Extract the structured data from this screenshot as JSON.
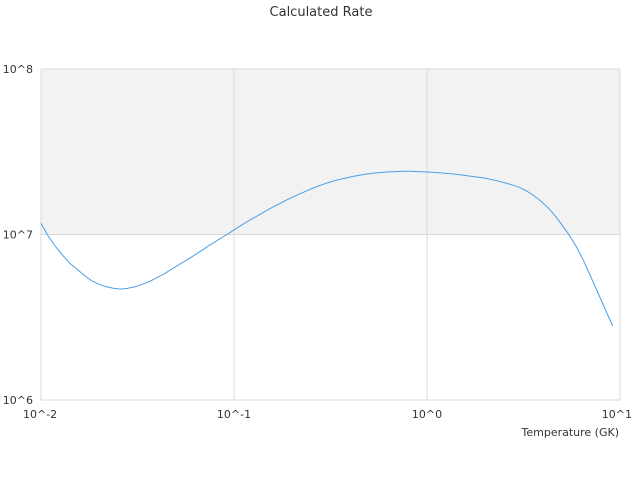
{
  "chart_data": {
    "type": "line",
    "title": "Calculated Rate",
    "xlabel": "Temperature (GK)",
    "ylabel": "",
    "x_scale": "log",
    "y_scale": "log",
    "xlim": [
      0.01,
      10
    ],
    "ylim": [
      1000000,
      100000000
    ],
    "x_ticks": [
      {
        "value": 0.01,
        "label": "10^-2"
      },
      {
        "value": 0.1,
        "label": "10^-1"
      },
      {
        "value": 1,
        "label": "10^0"
      },
      {
        "value": 10,
        "label": "10^1"
      }
    ],
    "y_ticks": [
      {
        "value": 1000000,
        "label": "10^6"
      },
      {
        "value": 10000000,
        "label": "10^7"
      },
      {
        "value": 100000000,
        "label": "10^8"
      }
    ],
    "grid": true,
    "band_colors": [
      "#f2f2f2",
      "#ffffff"
    ],
    "series": [
      {
        "name": "",
        "color": "#4a9fe8",
        "x": [
          0.01,
          0.0109,
          0.0119,
          0.013,
          0.0141,
          0.0154,
          0.0168,
          0.0183,
          0.02,
          0.0218,
          0.0237,
          0.0259,
          0.0282,
          0.0307,
          0.0335,
          0.0365,
          0.0398,
          0.0434,
          0.0473,
          0.0516,
          0.0562,
          0.0613,
          0.0668,
          0.0729,
          0.0794,
          0.0866,
          0.0944,
          0.103,
          0.112,
          0.122,
          0.133,
          0.145,
          0.158,
          0.173,
          0.188,
          0.205,
          0.224,
          0.244,
          0.266,
          0.29,
          0.316,
          0.345,
          0.376,
          0.41,
          0.447,
          0.487,
          0.531,
          0.579,
          0.631,
          0.688,
          0.75,
          0.818,
          0.891,
          0.972,
          1.06,
          1.16,
          1.26,
          1.37,
          1.5,
          1.63,
          1.78,
          1.94,
          2.11,
          2.31,
          2.51,
          2.74,
          2.99,
          3.26,
          3.55,
          3.87,
          4.22,
          4.6,
          5.01,
          5.46,
          5.96,
          6.49,
          7.08,
          7.72,
          8.41,
          9.17
        ],
        "y": [
          11700000,
          9800000,
          8450000,
          7450000,
          6700000,
          6150000,
          5650000,
          5250000,
          5000000,
          4830000,
          4730000,
          4680000,
          4730000,
          4830000,
          5000000,
          5200000,
          5480000,
          5780000,
          6150000,
          6550000,
          6950000,
          7400000,
          7900000,
          8450000,
          9000000,
          9600000,
          10200000,
          10900000,
          11600000,
          12300000,
          13000000,
          13800000,
          14600000,
          15400000,
          16200000,
          17000000,
          17800000,
          18600000,
          19400000,
          20100000,
          20800000,
          21400000,
          21900000,
          22400000,
          22800000,
          23200000,
          23500000,
          23700000,
          23900000,
          24000000,
          24100000,
          24100000,
          24000000,
          23900000,
          23800000,
          23600000,
          23400000,
          23200000,
          22900000,
          22600000,
          22300000,
          22000000,
          21600000,
          21100000,
          20600000,
          20000000,
          19300000,
          18400000,
          17300000,
          16000000,
          14600000,
          13000000,
          11400000,
          9900000,
          8400000,
          6900000,
          5500000,
          4400000,
          3500000,
          2800000
        ]
      }
    ]
  }
}
